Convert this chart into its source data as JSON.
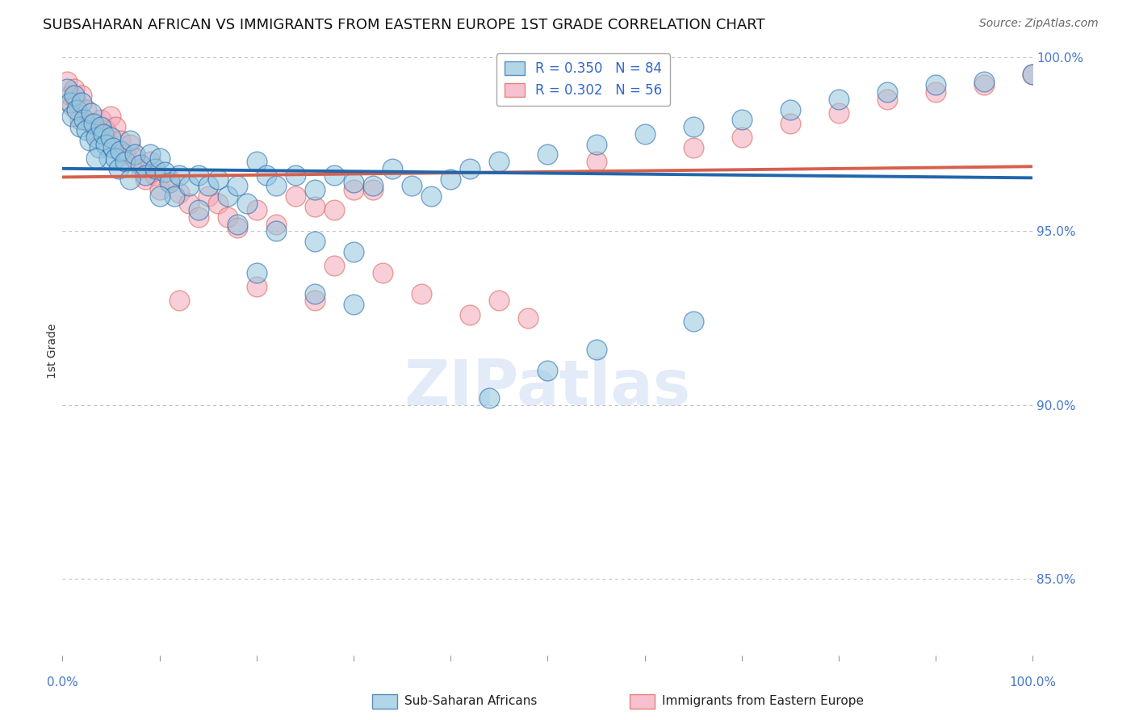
{
  "title": "SUBSAHARAN AFRICAN VS IMMIGRANTS FROM EASTERN EUROPE 1ST GRADE CORRELATION CHART",
  "source": "Source: ZipAtlas.com",
  "ylabel": "1st Grade",
  "R_blue": 0.35,
  "N_blue": 84,
  "R_pink": 0.302,
  "N_pink": 56,
  "blue_color": "#92c5de",
  "pink_color": "#f4a6ba",
  "line_blue": "#2166ac",
  "line_pink": "#d6604d",
  "legend_blue_label": "Sub-Saharan Africans",
  "legend_pink_label": "Immigrants from Eastern Europe",
  "watermark_text": "ZIPatlas",
  "background_color": "#ffffff",
  "grid_color": "#bbbbbb",
  "xmin": 0.0,
  "xmax": 1.0,
  "ymin": 0.828,
  "ymax": 1.003,
  "blue_scatter_x": [
    0.005,
    0.008,
    0.01,
    0.012,
    0.015,
    0.018,
    0.02,
    0.022,
    0.025,
    0.028,
    0.03,
    0.032,
    0.035,
    0.038,
    0.04,
    0.042,
    0.045,
    0.048,
    0.05,
    0.052,
    0.055,
    0.058,
    0.06,
    0.065,
    0.07,
    0.075,
    0.08,
    0.085,
    0.09,
    0.095,
    0.1,
    0.105,
    0.11,
    0.115,
    0.12,
    0.13,
    0.14,
    0.15,
    0.16,
    0.17,
    0.18,
    0.19,
    0.2,
    0.21,
    0.22,
    0.24,
    0.26,
    0.28,
    0.3,
    0.32,
    0.34,
    0.36,
    0.38,
    0.4,
    0.42,
    0.45,
    0.5,
    0.55,
    0.6,
    0.65,
    0.7,
    0.75,
    0.8,
    0.85,
    0.9,
    0.95,
    1.0,
    0.035,
    0.07,
    0.1,
    0.14,
    0.18,
    0.22,
    0.26,
    0.3,
    0.65,
    0.2,
    0.26,
    0.3,
    0.44,
    0.5,
    0.55
  ],
  "blue_scatter_y": [
    0.991,
    0.987,
    0.983,
    0.989,
    0.985,
    0.98,
    0.987,
    0.982,
    0.979,
    0.976,
    0.984,
    0.981,
    0.977,
    0.974,
    0.98,
    0.978,
    0.975,
    0.971,
    0.977,
    0.974,
    0.971,
    0.968,
    0.973,
    0.97,
    0.976,
    0.972,
    0.969,
    0.966,
    0.972,
    0.968,
    0.971,
    0.967,
    0.964,
    0.96,
    0.966,
    0.963,
    0.966,
    0.963,
    0.965,
    0.96,
    0.963,
    0.958,
    0.97,
    0.966,
    0.963,
    0.966,
    0.962,
    0.966,
    0.964,
    0.963,
    0.968,
    0.963,
    0.96,
    0.965,
    0.968,
    0.97,
    0.972,
    0.975,
    0.978,
    0.98,
    0.982,
    0.985,
    0.988,
    0.99,
    0.992,
    0.993,
    0.995,
    0.971,
    0.965,
    0.96,
    0.956,
    0.952,
    0.95,
    0.947,
    0.944,
    0.924,
    0.938,
    0.932,
    0.929,
    0.902,
    0.91,
    0.916
  ],
  "pink_scatter_x": [
    0.005,
    0.008,
    0.01,
    0.012,
    0.015,
    0.018,
    0.02,
    0.025,
    0.03,
    0.035,
    0.04,
    0.045,
    0.05,
    0.055,
    0.06,
    0.065,
    0.07,
    0.075,
    0.08,
    0.085,
    0.09,
    0.095,
    0.1,
    0.11,
    0.12,
    0.13,
    0.14,
    0.15,
    0.16,
    0.17,
    0.18,
    0.2,
    0.22,
    0.24,
    0.26,
    0.28,
    0.3,
    0.32,
    0.55,
    0.65,
    0.7,
    0.75,
    0.8,
    0.85,
    0.9,
    0.95,
    1.0,
    0.12,
    0.2,
    0.26,
    0.28,
    0.33,
    0.37,
    0.42,
    0.45,
    0.48
  ],
  "pink_scatter_y": [
    0.993,
    0.989,
    0.986,
    0.991,
    0.987,
    0.982,
    0.989,
    0.985,
    0.981,
    0.978,
    0.982,
    0.979,
    0.983,
    0.98,
    0.976,
    0.972,
    0.975,
    0.971,
    0.968,
    0.965,
    0.97,
    0.966,
    0.962,
    0.965,
    0.961,
    0.958,
    0.954,
    0.96,
    0.958,
    0.954,
    0.951,
    0.956,
    0.952,
    0.96,
    0.957,
    0.956,
    0.962,
    0.962,
    0.97,
    0.974,
    0.977,
    0.981,
    0.984,
    0.988,
    0.99,
    0.992,
    0.995,
    0.93,
    0.934,
    0.93,
    0.94,
    0.938,
    0.932,
    0.926,
    0.93,
    0.925
  ]
}
